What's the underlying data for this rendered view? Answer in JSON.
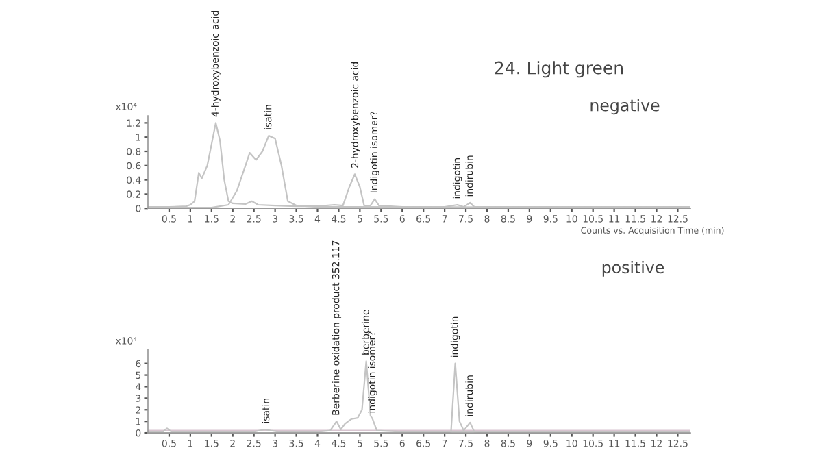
{
  "chart_data": [
    {
      "type": "line",
      "title": "24. Light green",
      "subtitle": "negative",
      "xlabel": "Counts vs. Acquisition Time (min)",
      "ylabel": "x10⁴",
      "xlim": [
        0,
        12.8
      ],
      "ylim": [
        0,
        1.3
      ],
      "xticks": [
        0.5,
        1,
        1.5,
        2,
        2.5,
        3,
        3.5,
        4,
        4.5,
        5,
        5.5,
        6,
        6.5,
        7,
        7.5,
        8,
        8.5,
        9,
        9.5,
        10,
        10.5,
        11,
        11.5,
        12,
        12.5
      ],
      "yticks": [
        0,
        0.2,
        0.4,
        0.6,
        0.8,
        1,
        1.2
      ],
      "series": [
        {
          "color": "#c4c4c4",
          "x": [
            0,
            0.5,
            0.9,
            1.0,
            1.1,
            1.2,
            1.27,
            1.4,
            1.5,
            1.6,
            1.7,
            1.8,
            1.9,
            2.0,
            2.3,
            2.45,
            2.6,
            3.0,
            3.5,
            4.0,
            4.4,
            4.6,
            4.75,
            4.88,
            5.0,
            5.1,
            5.25,
            5.35,
            5.45,
            6.0,
            7.0,
            7.3,
            7.45,
            7.6,
            7.7,
            8.5,
            10,
            12.8
          ],
          "values": [
            0.02,
            0.02,
            0.03,
            0.05,
            0.1,
            0.5,
            0.42,
            0.6,
            0.9,
            1.2,
            0.95,
            0.4,
            0.1,
            0.07,
            0.06,
            0.1,
            0.05,
            0.04,
            0.03,
            0.03,
            0.05,
            0.04,
            0.3,
            0.48,
            0.3,
            0.04,
            0.04,
            0.13,
            0.04,
            0.02,
            0.02,
            0.05,
            0.02,
            0.08,
            0.02,
            0.02,
            0.02,
            0.02
          ]
        },
        {
          "color": "#c4c4c4",
          "x": [
            0,
            1.5,
            1.9,
            2.1,
            2.3,
            2.4,
            2.55,
            2.7,
            2.85,
            3.0,
            3.15,
            3.3,
            3.5,
            4.0,
            12.8
          ],
          "values": [
            0.01,
            0.01,
            0.05,
            0.25,
            0.6,
            0.78,
            0.68,
            0.8,
            1.02,
            0.98,
            0.6,
            0.1,
            0.04,
            0.02,
            0.01
          ]
        }
      ],
      "annotations": [
        {
          "text": "4-hydroxybenzoic acid",
          "x": 1.6,
          "y": 1.2
        },
        {
          "text": "isatin",
          "x": 2.85,
          "y": 1.02
        },
        {
          "text": "2-hydroxybenzoic acid",
          "x": 4.9,
          "y": 0.48
        },
        {
          "text": "Indigotin isomer?",
          "x": 5.35,
          "y": 0.13
        },
        {
          "text": "indigotin",
          "x": 7.3,
          "y": 0.05
        },
        {
          "text": "indirubin",
          "x": 7.6,
          "y": 0.08
        }
      ]
    },
    {
      "type": "line",
      "title": "positive",
      "ylabel": "x10⁴",
      "xlim": [
        0,
        12.8
      ],
      "ylim": [
        0,
        7.2
      ],
      "xticks": [
        0.5,
        1,
        1.5,
        2,
        2.5,
        3,
        3.5,
        4,
        4.5,
        5,
        5.5,
        6,
        6.5,
        7,
        7.5,
        8,
        8.5,
        9,
        9.5,
        10,
        10.5,
        11,
        11.5,
        12,
        12.5
      ],
      "yticks": [
        0,
        1,
        2,
        3,
        4,
        5,
        6
      ],
      "series": [
        {
          "color": "#d8c4d0",
          "x": [
            0,
            12.8
          ],
          "values": [
            0.2,
            0.2
          ]
        },
        {
          "color": "#c4c4c4",
          "x": [
            0,
            0.35,
            0.45,
            0.55,
            1,
            2.5,
            2.75,
            2.9,
            3.1,
            4.0,
            4.3,
            4.45,
            4.55,
            4.65,
            4.8,
            4.95,
            5.05,
            5.15,
            5.25,
            5.3,
            5.4,
            6,
            12.8
          ],
          "values": [
            0.1,
            0.1,
            0.4,
            0.1,
            0.1,
            0.1,
            0.3,
            0.2,
            0.1,
            0.1,
            0.2,
            1.0,
            0.3,
            0.8,
            1.2,
            1.3,
            2,
            6.2,
            1.5,
            1.2,
            0.2,
            0.1,
            0.1
          ]
        },
        {
          "color": "#c4c4c4",
          "x": [
            0,
            7.0,
            7.15,
            7.25,
            7.35,
            7.45,
            7.6,
            7.7,
            8,
            12.8
          ],
          "values": [
            0,
            0,
            0.1,
            6.0,
            1.0,
            0.2,
            0.9,
            0.1,
            0,
            0
          ]
        }
      ],
      "annotations": [
        {
          "text": "isatin",
          "x": 2.8,
          "y": 0.3
        },
        {
          "text": "Berberine oxidation product 352.117",
          "x": 4.45,
          "y": 1.0
        },
        {
          "text": "berberine",
          "x": 5.15,
          "y": 6.2
        },
        {
          "text": "indigotin isomer?",
          "x": 5.3,
          "y": 1.2
        },
        {
          "text": "indigotin",
          "x": 7.25,
          "y": 6.0
        },
        {
          "text": "indirubin",
          "x": 7.6,
          "y": 0.9
        }
      ]
    }
  ]
}
